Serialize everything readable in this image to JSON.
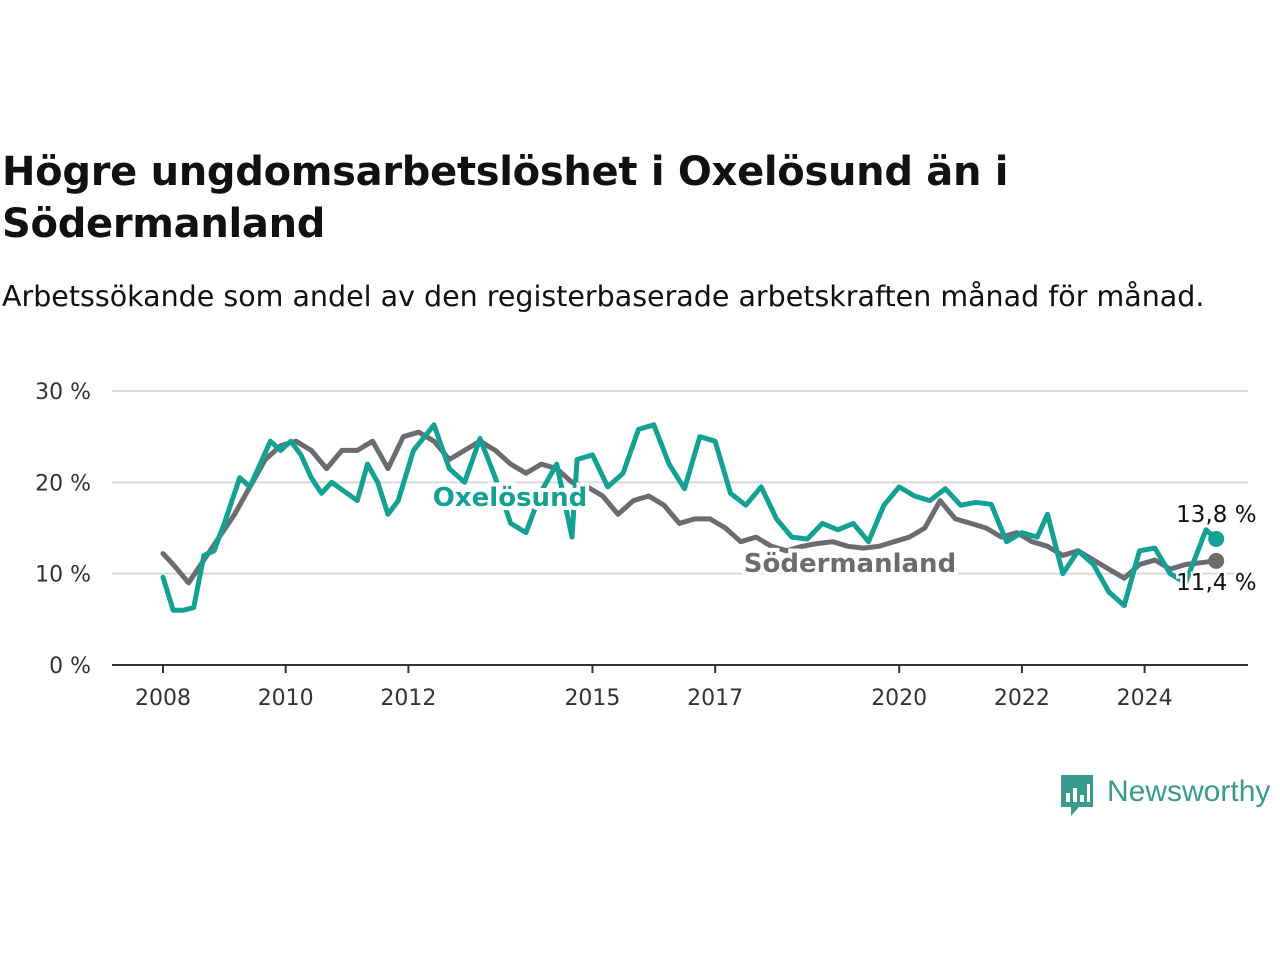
{
  "title": "Högre ungdomsarbetslöshet i Oxelösund än i Södermanland",
  "subtitle": "Arbetssökande som andel av den registerbaserade arbetskraften månad för månad.",
  "brand": {
    "name": "Newsworthy",
    "color": "#3a9a8e"
  },
  "chart_data": {
    "type": "line",
    "title": "Högre ungdomsarbetslöshet i Oxelösund än i Södermanland",
    "subtitle": "Arbetssökande som andel av den registerbaserade arbetskraften månad för månad.",
    "xlabel": "",
    "ylabel": "",
    "ylim": [
      0,
      30
    ],
    "y_ticks": [
      0,
      10,
      20,
      30
    ],
    "y_tick_labels": [
      "0 %",
      "10 %",
      "20 %",
      "30 %"
    ],
    "x_ticks": [
      "2008",
      "2010",
      "2012",
      "2015",
      "2017",
      "2020",
      "2022",
      "2024"
    ],
    "grid": true,
    "legend": "inline labels",
    "series": [
      {
        "name": "Oxelösund",
        "color": "#12a192",
        "end_label": "13,8 %",
        "points": [
          [
            "2008-01",
            9.6
          ],
          [
            "2008-03",
            6.0
          ],
          [
            "2008-05",
            6.0
          ],
          [
            "2008-07",
            6.3
          ],
          [
            "2008-09",
            12.0
          ],
          [
            "2008-11",
            12.5
          ],
          [
            "2009-01",
            15.5
          ],
          [
            "2009-04",
            20.5
          ],
          [
            "2009-06",
            19.5
          ],
          [
            "2009-08",
            22.0
          ],
          [
            "2009-10",
            24.5
          ],
          [
            "2009-12",
            23.5
          ],
          [
            "2010-02",
            24.5
          ],
          [
            "2010-04",
            23.0
          ],
          [
            "2010-06",
            20.5
          ],
          [
            "2010-08",
            18.8
          ],
          [
            "2010-10",
            20.0
          ],
          [
            "2010-12",
            19.2
          ],
          [
            "2011-03",
            18.0
          ],
          [
            "2011-05",
            22.0
          ],
          [
            "2011-07",
            20.0
          ],
          [
            "2011-09",
            16.5
          ],
          [
            "2011-11",
            18.0
          ],
          [
            "2012-02",
            23.5
          ],
          [
            "2012-06",
            26.3
          ],
          [
            "2012-09",
            21.5
          ],
          [
            "2012-12",
            20.0
          ],
          [
            "2013-03",
            24.8
          ],
          [
            "2013-06",
            20.5
          ],
          [
            "2013-09",
            15.5
          ],
          [
            "2013-12",
            14.5
          ],
          [
            "2014-03",
            19.0
          ],
          [
            "2014-06",
            22.0
          ],
          [
            "2014-09",
            14.0
          ],
          [
            "2014-10",
            22.5
          ],
          [
            "2015-01",
            23.0
          ],
          [
            "2015-04",
            19.5
          ],
          [
            "2015-07",
            21.0
          ],
          [
            "2015-10",
            25.8
          ],
          [
            "2016-01",
            26.3
          ],
          [
            "2016-04",
            22.0
          ],
          [
            "2016-07",
            19.3
          ],
          [
            "2016-10",
            25.0
          ],
          [
            "2017-01",
            24.5
          ],
          [
            "2017-04",
            18.8
          ],
          [
            "2017-07",
            17.5
          ],
          [
            "2017-10",
            19.5
          ],
          [
            "2018-01",
            16.0
          ],
          [
            "2018-04",
            14.0
          ],
          [
            "2018-07",
            13.8
          ],
          [
            "2018-10",
            15.5
          ],
          [
            "2019-01",
            14.8
          ],
          [
            "2019-04",
            15.5
          ],
          [
            "2019-07",
            13.5
          ],
          [
            "2019-10",
            17.5
          ],
          [
            "2020-01",
            19.5
          ],
          [
            "2020-04",
            18.5
          ],
          [
            "2020-07",
            18.0
          ],
          [
            "2020-10",
            19.3
          ],
          [
            "2021-01",
            17.5
          ],
          [
            "2021-04",
            17.8
          ],
          [
            "2021-07",
            17.6
          ],
          [
            "2021-10",
            13.5
          ],
          [
            "2022-01",
            14.5
          ],
          [
            "2022-04",
            14.0
          ],
          [
            "2022-06",
            16.5
          ],
          [
            "2022-09",
            10.0
          ],
          [
            "2022-12",
            12.5
          ],
          [
            "2023-03",
            11.0
          ],
          [
            "2023-06",
            8.0
          ],
          [
            "2023-09",
            6.5
          ],
          [
            "2023-12",
            12.5
          ],
          [
            "2024-03",
            12.8
          ],
          [
            "2024-06",
            10.0
          ],
          [
            "2024-09",
            9.0
          ],
          [
            "2025-01",
            14.8
          ],
          [
            "2025-03",
            13.8
          ]
        ]
      },
      {
        "name": "Södermanland",
        "color": "#6b6b72",
        "end_label": "11,4 %",
        "points": [
          [
            "2008-01",
            12.2
          ],
          [
            "2008-03",
            11.0
          ],
          [
            "2008-06",
            9.0
          ],
          [
            "2008-09",
            11.5
          ],
          [
            "2008-12",
            14.0
          ],
          [
            "2009-03",
            16.5
          ],
          [
            "2009-06",
            19.5
          ],
          [
            "2009-09",
            22.5
          ],
          [
            "2009-12",
            24.0
          ],
          [
            "2010-03",
            24.5
          ],
          [
            "2010-06",
            23.5
          ],
          [
            "2010-09",
            21.5
          ],
          [
            "2010-12",
            23.5
          ],
          [
            "2011-03",
            23.5
          ],
          [
            "2011-06",
            24.5
          ],
          [
            "2011-09",
            21.5
          ],
          [
            "2011-12",
            25.0
          ],
          [
            "2012-03",
            25.5
          ],
          [
            "2012-06",
            24.5
          ],
          [
            "2012-09",
            22.5
          ],
          [
            "2012-12",
            23.5
          ],
          [
            "2013-03",
            24.5
          ],
          [
            "2013-06",
            23.5
          ],
          [
            "2013-09",
            22.0
          ],
          [
            "2013-12",
            21.0
          ],
          [
            "2014-03",
            22.0
          ],
          [
            "2014-06",
            21.5
          ],
          [
            "2014-09",
            20.0
          ],
          [
            "2014-12",
            19.5
          ],
          [
            "2015-03",
            18.5
          ],
          [
            "2015-06",
            16.5
          ],
          [
            "2015-09",
            18.0
          ],
          [
            "2015-12",
            18.5
          ],
          [
            "2016-03",
            17.5
          ],
          [
            "2016-06",
            15.5
          ],
          [
            "2016-09",
            16.0
          ],
          [
            "2016-12",
            16.0
          ],
          [
            "2017-03",
            15.0
          ],
          [
            "2017-06",
            13.5
          ],
          [
            "2017-09",
            14.0
          ],
          [
            "2017-12",
            13.0
          ],
          [
            "2018-03",
            12.5
          ],
          [
            "2018-06",
            13.0
          ],
          [
            "2018-09",
            13.3
          ],
          [
            "2018-12",
            13.5
          ],
          [
            "2019-03",
            13.0
          ],
          [
            "2019-06",
            12.8
          ],
          [
            "2019-09",
            13.0
          ],
          [
            "2019-12",
            13.5
          ],
          [
            "2020-03",
            14.0
          ],
          [
            "2020-06",
            15.0
          ],
          [
            "2020-09",
            18.0
          ],
          [
            "2020-12",
            16.0
          ],
          [
            "2021-03",
            15.5
          ],
          [
            "2021-06",
            15.0
          ],
          [
            "2021-09",
            14.0
          ],
          [
            "2021-12",
            14.5
          ],
          [
            "2022-03",
            13.5
          ],
          [
            "2022-06",
            13.0
          ],
          [
            "2022-09",
            12.0
          ],
          [
            "2022-12",
            12.5
          ],
          [
            "2023-03",
            11.5
          ],
          [
            "2023-06",
            10.5
          ],
          [
            "2023-09",
            9.5
          ],
          [
            "2023-12",
            11.0
          ],
          [
            "2024-03",
            11.5
          ],
          [
            "2024-06",
            10.5
          ],
          [
            "2024-09",
            11.0
          ],
          [
            "2024-12",
            11.2
          ],
          [
            "2025-03",
            11.4
          ]
        ]
      }
    ]
  }
}
